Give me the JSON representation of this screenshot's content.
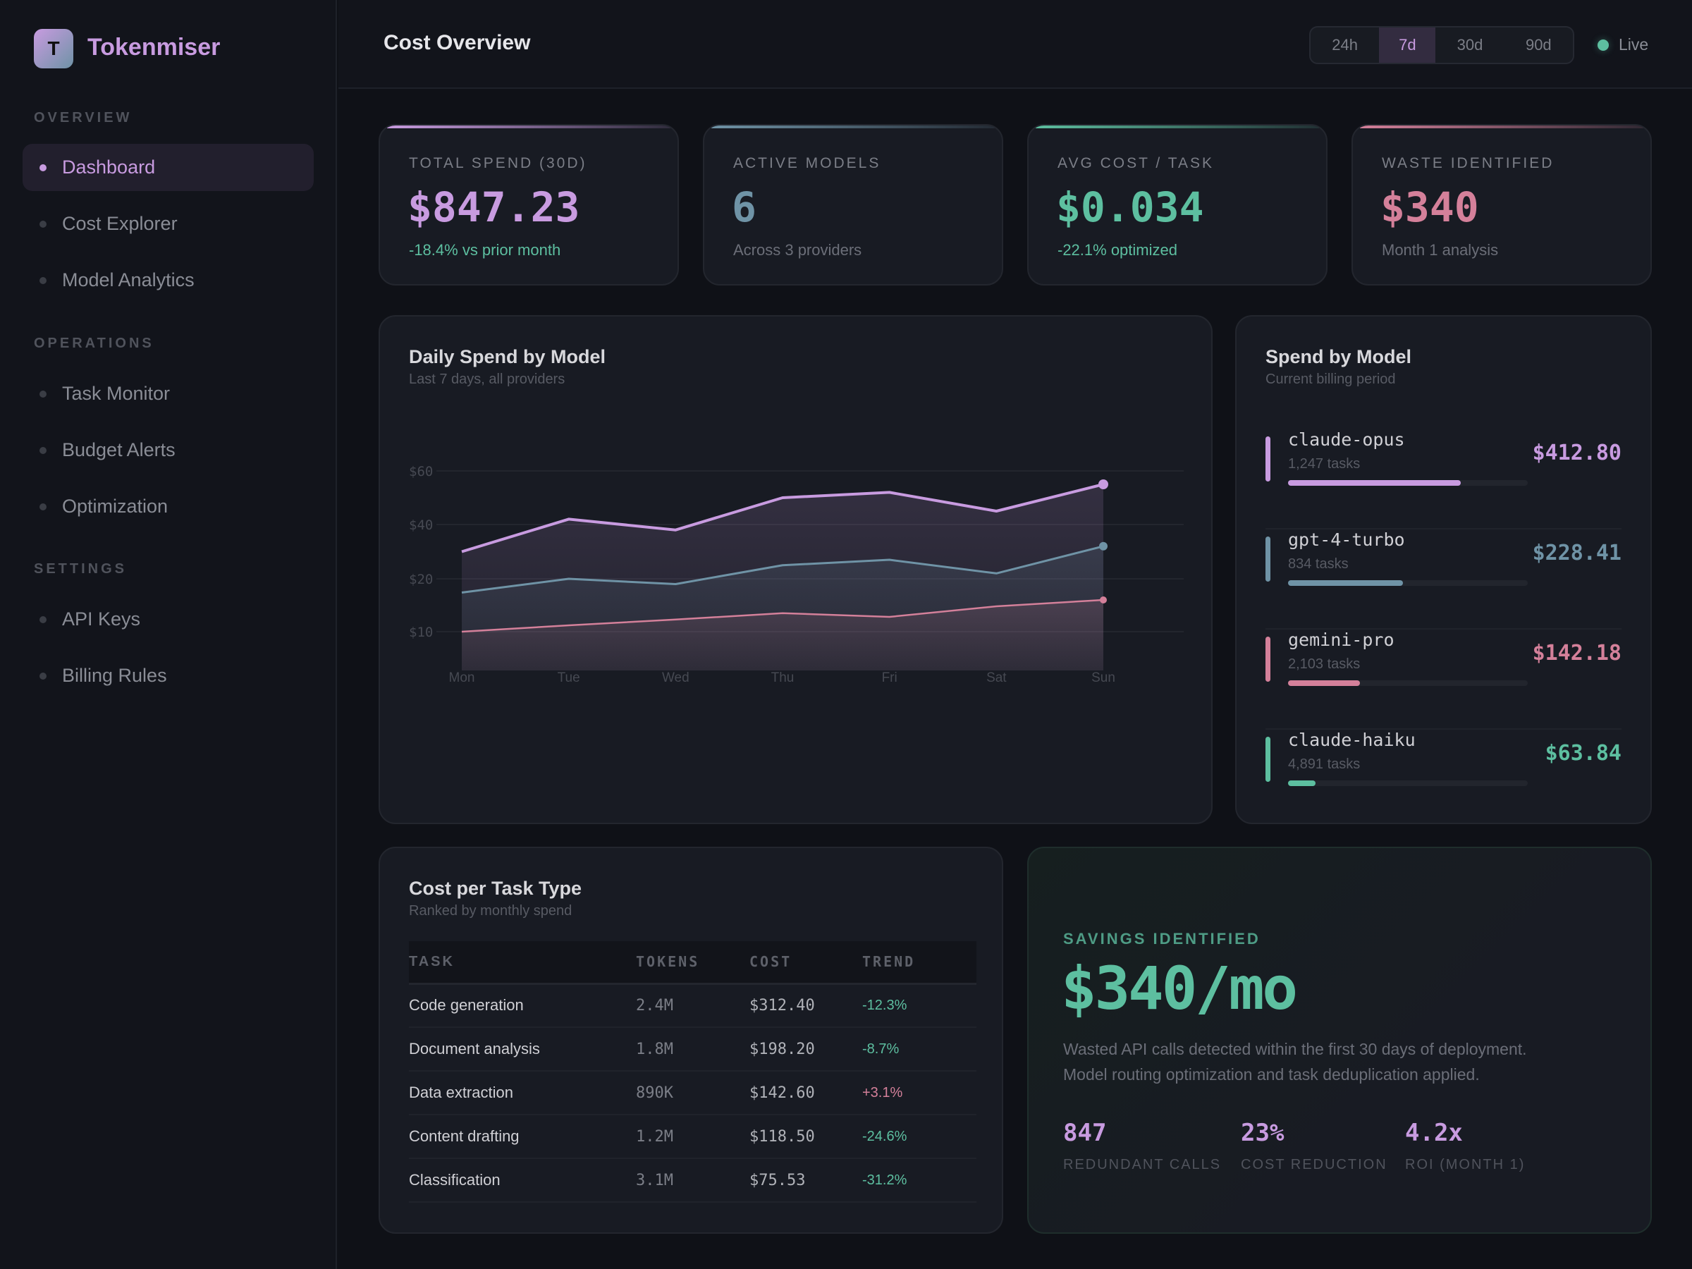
{
  "app": {
    "logo_letter": "T",
    "name": "Tokenmiser"
  },
  "sidebar": {
    "sections": [
      {
        "label": "OVERVIEW",
        "items": [
          "Dashboard",
          "Cost Explorer",
          "Model Analytics"
        ]
      },
      {
        "label": "OPERATIONS",
        "items": [
          "Task Monitor",
          "Budget Alerts",
          "Optimization"
        ]
      },
      {
        "label": "SETTINGS",
        "items": [
          "API Keys",
          "Billing Rules"
        ]
      }
    ],
    "active": "Dashboard"
  },
  "header": {
    "title": "Cost Overview",
    "ranges": [
      "24h",
      "7d",
      "30d",
      "90d"
    ],
    "selected_range": "7d",
    "live_label": "Live"
  },
  "colors": {
    "purple": "#c89be0",
    "blue": "#6f93a6",
    "pink": "#d4809a",
    "green": "#5dbfa0"
  },
  "kpis": [
    {
      "label": "TOTAL SPEND (30D)",
      "value": "$847.23",
      "sub": "-18.4% vs prior month",
      "color": "#c89be0",
      "sub_color": "#5dbfa0"
    },
    {
      "label": "ACTIVE MODELS",
      "value": "6",
      "sub": "Across 3 providers",
      "color": "#6f93a6",
      "sub_color": "#6b6e78"
    },
    {
      "label": "AVG COST / TASK",
      "value": "$0.034",
      "sub": "-22.1% optimized",
      "color": "#5dbfa0",
      "sub_color": "#5dbfa0"
    },
    {
      "label": "WASTE IDENTIFIED",
      "value": "$340",
      "sub": "Month 1 analysis",
      "color": "#d4809a",
      "sub_color": "#6b6e78"
    }
  ],
  "daily_chart": {
    "title": "Daily Spend by Model",
    "subtitle": "Last 7 days, all providers"
  },
  "chart_data": {
    "type": "area",
    "categories": [
      "Mon",
      "Tue",
      "Wed",
      "Thu",
      "Fri",
      "Sat",
      "Sun"
    ],
    "y_ticks": [
      10,
      20,
      40,
      60
    ],
    "y_tick_labels": [
      "$10",
      "$20",
      "$40",
      "$60"
    ],
    "grid": true,
    "series": [
      {
        "color": "#c89be0",
        "values": [
          30,
          42,
          38,
          50,
          52,
          45,
          55
        ]
      },
      {
        "color": "#6f93a6",
        "values": [
          17.4,
          20,
          19,
          25,
          27,
          22,
          32
        ]
      },
      {
        "color": "#d4809a",
        "values": [
          10,
          11.2,
          12.3,
          13.5,
          12.8,
          14.8,
          16
        ]
      }
    ]
  },
  "spend_by_model": {
    "title": "Spend by Model",
    "subtitle": "Current billing period",
    "models": [
      {
        "name": "claude-opus",
        "tasks": "1,247 tasks",
        "amount": "$412.80",
        "share": 0.72,
        "color": "#c89be0"
      },
      {
        "name": "gpt-4-turbo",
        "tasks": "834 tasks",
        "amount": "$228.41",
        "share": 0.48,
        "color": "#6f93a6"
      },
      {
        "name": "gemini-pro",
        "tasks": "2,103 tasks",
        "amount": "$142.18",
        "share": 0.3,
        "color": "#d4809a"
      },
      {
        "name": "claude-haiku",
        "tasks": "4,891 tasks",
        "amount": "$63.84",
        "share": 0.115,
        "color": "#5dbfa0"
      }
    ]
  },
  "task_table": {
    "title": "Cost per Task Type",
    "subtitle": "Ranked by monthly spend",
    "columns": [
      "TASK",
      "TOKENS",
      "COST",
      "TREND"
    ],
    "rows": [
      {
        "task": "Code generation",
        "tokens": "2.4M",
        "cost": "$312.40",
        "trend": "-12.3%"
      },
      {
        "task": "Document analysis",
        "tokens": "1.8M",
        "cost": "$198.20",
        "trend": "-8.7%"
      },
      {
        "task": "Data extraction",
        "tokens": "890K",
        "cost": "$142.60",
        "trend": "+3.1%"
      },
      {
        "task": "Content drafting",
        "tokens": "1.2M",
        "cost": "$118.50",
        "trend": "-24.6%"
      },
      {
        "task": "Classification",
        "tokens": "3.1M",
        "cost": "$75.53",
        "trend": "-31.2%"
      }
    ]
  },
  "savings": {
    "label": "SAVINGS IDENTIFIED",
    "value": "$340/mo",
    "description": [
      "Wasted API calls detected within the first 30 days of deployment.",
      "Model routing optimization and task deduplication applied."
    ],
    "stats": [
      {
        "value": "847",
        "label": "REDUNDANT CALLS"
      },
      {
        "value": "23%",
        "label": "COST REDUCTION"
      },
      {
        "value": "4.2x",
        "label": "ROI (MONTH 1)"
      }
    ]
  }
}
